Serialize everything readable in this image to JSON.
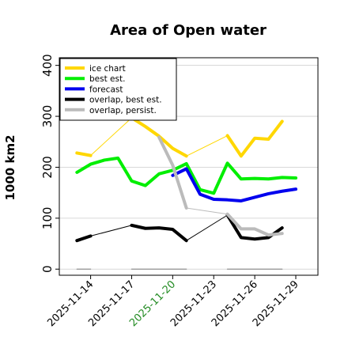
{
  "chart_data": {
    "type": "line",
    "title": "Area of Open water",
    "ylabel": "1000 km2",
    "xlabel": "",
    "xlim": [
      "2025-11-12",
      "2025-11-29"
    ],
    "ylim": [
      -12,
      415
    ],
    "yticks": [
      0,
      100,
      200,
      300,
      400
    ],
    "xticks": [
      "2025-11-14",
      "2025-11-17",
      "2025-11-20",
      "2025-11-23",
      "2025-11-26",
      "2025-11-29"
    ],
    "highlight_tick": "2025-11-20",
    "highlight_color": "#228B22",
    "legend_position": "upper-left",
    "series": [
      {
        "name": "ice chart",
        "color": "#FFD700",
        "points": [
          [
            "2025-11-13",
            228
          ],
          [
            "2025-11-14",
            223
          ],
          [
            "2025-11-17",
            297
          ],
          [
            "2025-11-18",
            280
          ],
          [
            "2025-11-19",
            261
          ],
          [
            "2025-11-20",
            237
          ],
          [
            "2025-11-21",
            222
          ],
          [
            "2025-11-24",
            262
          ],
          [
            "2025-11-25",
            222
          ],
          [
            "2025-11-26",
            257
          ],
          [
            "2025-11-27",
            255
          ],
          [
            "2025-11-28",
            290
          ]
        ],
        "bold_segments": [
          [
            0,
            1
          ],
          [
            2,
            6
          ],
          [
            7,
            11
          ]
        ]
      },
      {
        "name": "best est.",
        "color": "#00EE00",
        "points": [
          [
            "2025-11-13",
            190
          ],
          [
            "2025-11-14",
            206
          ],
          [
            "2025-11-15",
            214
          ],
          [
            "2025-11-16",
            218
          ],
          [
            "2025-11-17",
            173
          ],
          [
            "2025-11-18",
            164
          ],
          [
            "2025-11-19",
            187
          ],
          [
            "2025-11-20",
            194
          ],
          [
            "2025-11-21",
            207
          ],
          [
            "2025-11-22",
            156
          ],
          [
            "2025-11-23",
            149
          ],
          [
            "2025-11-24",
            208
          ],
          [
            "2025-11-25",
            177
          ],
          [
            "2025-11-26",
            178
          ],
          [
            "2025-11-27",
            177
          ],
          [
            "2025-11-28",
            180
          ],
          [
            "2025-11-29",
            179
          ]
        ]
      },
      {
        "name": "forecast",
        "color": "#0000EE",
        "points": [
          [
            "2025-11-20",
            184
          ],
          [
            "2025-11-21",
            197
          ],
          [
            "2025-11-22",
            147
          ],
          [
            "2025-11-23",
            137
          ],
          [
            "2025-11-24",
            136
          ],
          [
            "2025-11-25",
            134
          ],
          [
            "2025-11-26",
            141
          ],
          [
            "2025-11-27",
            148
          ],
          [
            "2025-11-28",
            153
          ],
          [
            "2025-11-29",
            157
          ]
        ],
        "bold_segments": [
          [
            0,
            9
          ]
        ]
      },
      {
        "name": "overlap, best est.",
        "color": "#000000",
        "points": [
          [
            "2025-11-13",
            56
          ],
          [
            "2025-11-14",
            65
          ],
          [
            "2025-11-17",
            86
          ],
          [
            "2025-11-18",
            80
          ],
          [
            "2025-11-19",
            81
          ],
          [
            "2025-11-20",
            78
          ],
          [
            "2025-11-21",
            56
          ],
          [
            "2025-11-24",
            106
          ],
          [
            "2025-11-25",
            62
          ],
          [
            "2025-11-26",
            59
          ],
          [
            "2025-11-27",
            62
          ],
          [
            "2025-11-28",
            81
          ]
        ],
        "bold_segments": [
          [
            0,
            1
          ],
          [
            2,
            6
          ],
          [
            7,
            11
          ]
        ]
      },
      {
        "name": "overlap, persist.",
        "color": "#BBBBBB",
        "points": [
          [
            "2025-11-19",
            259
          ],
          [
            "2025-11-20",
            204
          ],
          [
            "2025-11-21",
            120
          ],
          [
            "2025-11-24",
            108
          ],
          [
            "2025-11-25",
            79
          ],
          [
            "2025-11-26",
            79
          ],
          [
            "2025-11-27",
            67
          ],
          [
            "2025-11-28",
            70
          ]
        ],
        "bold_segments": [
          [
            0,
            2
          ],
          [
            3,
            7
          ]
        ]
      },
      {
        "name": "",
        "color": "#999999",
        "points": [
          [
            "2025-11-13",
            0
          ],
          [
            "2025-11-14",
            0
          ],
          [
            "2025-11-17",
            0
          ],
          [
            "2025-11-21",
            0
          ],
          [
            "2025-11-24",
            0
          ],
          [
            "2025-11-28",
            0
          ]
        ],
        "bold_segments": [
          [
            0,
            1
          ],
          [
            2,
            3
          ],
          [
            4,
            5
          ]
        ],
        "thin": true
      }
    ]
  }
}
